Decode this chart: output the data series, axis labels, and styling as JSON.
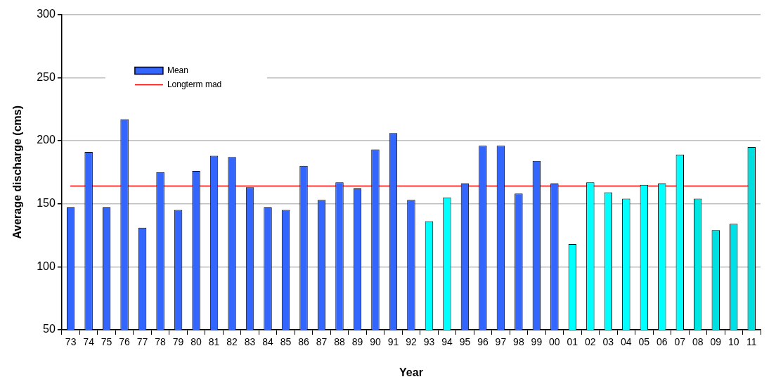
{
  "chart_data": {
    "type": "bar",
    "xlabel": "Year",
    "ylabel": "Average discharge (cms)",
    "categories": [
      "73",
      "74",
      "75",
      "76",
      "77",
      "78",
      "79",
      "80",
      "81",
      "82",
      "83",
      "84",
      "85",
      "86",
      "87",
      "88",
      "89",
      "90",
      "91",
      "92",
      "93",
      "94",
      "95",
      "96",
      "97",
      "98",
      "99",
      "00",
      "01",
      "02",
      "03",
      "04",
      "05",
      "06",
      "07",
      "08",
      "09",
      "10",
      "11"
    ],
    "series": [
      {
        "name": "Mean",
        "color": "#3366ff",
        "values": [
          147,
          191,
          147,
          217,
          131,
          175,
          145,
          176,
          188,
          187,
          163,
          147,
          145,
          180,
          153,
          167,
          162,
          193,
          206,
          153,
          136,
          155,
          166,
          196,
          196,
          158,
          184,
          166,
          118,
          167,
          159,
          154,
          165,
          166,
          189,
          154,
          129,
          134,
          195
        ],
        "colors": [
          "#3366ff",
          "#3366ff",
          "#3366ff",
          "#3366ff",
          "#3366ff",
          "#3366ff",
          "#3366ff",
          "#3366ff",
          "#3366ff",
          "#3366ff",
          "#3366ff",
          "#3366ff",
          "#3366ff",
          "#3366ff",
          "#3366ff",
          "#3366ff",
          "#3366ff",
          "#3366ff",
          "#3366ff",
          "#3366ff",
          "#00ffff",
          "#00ffff",
          "#3366ff",
          "#3366ff",
          "#3366ff",
          "#3366ff",
          "#3366ff",
          "#3366ff",
          "#00ffff",
          "#00ffff",
          "#00ffff",
          "#00ffff",
          "#00ffff",
          "#00ffff",
          "#00ffff",
          "#00e6e0",
          "#00e0e0",
          "#00e0e6",
          "#00dede"
        ]
      }
    ],
    "ref_lines": [
      {
        "axis": "y",
        "value": 164,
        "label": "Longterm mad",
        "color": "#ff0000"
      }
    ],
    "ylim": [
      50,
      300
    ],
    "yticks": [
      50,
      100,
      150,
      200,
      250,
      300
    ],
    "grid": "y",
    "legend": "top left"
  }
}
